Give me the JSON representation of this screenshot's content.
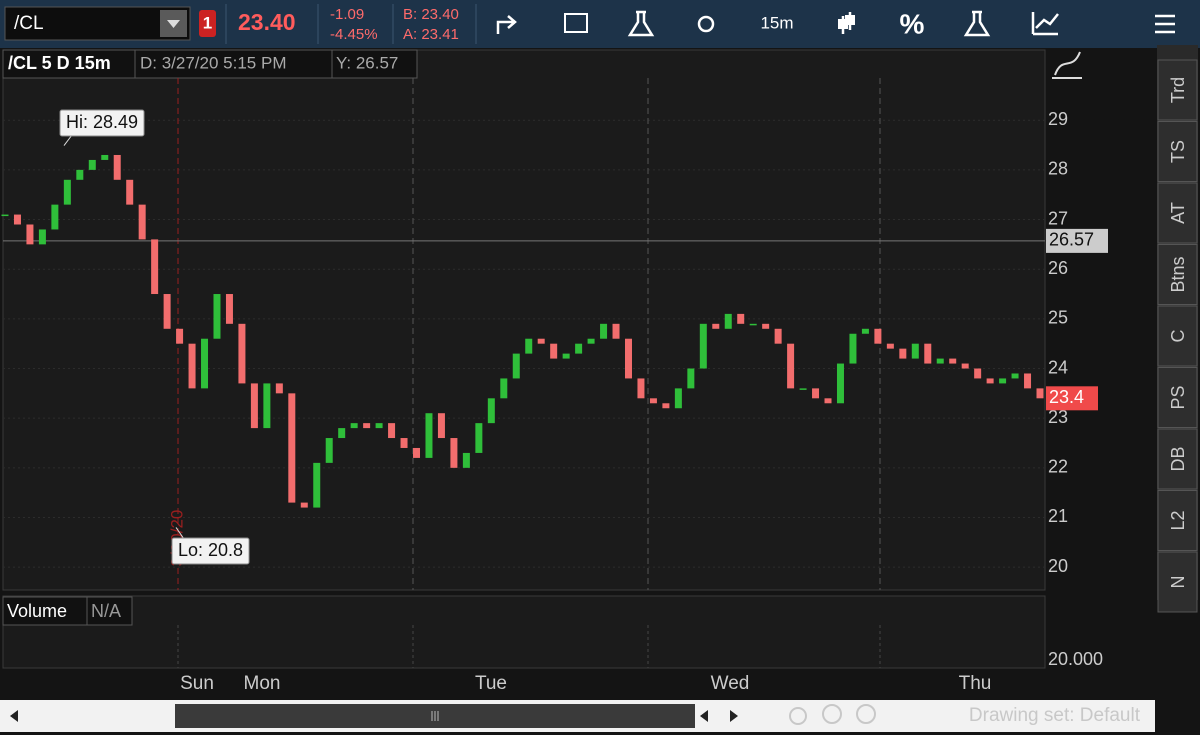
{
  "toolbar": {
    "symbol": "/CL",
    "alert_count": "1",
    "last": "23.40",
    "change": "-1.09",
    "change_pct": "-4.45%",
    "bid": "B: 23.40",
    "ask": "A: 23.41",
    "timeframe": "15m",
    "percent_button": "%"
  },
  "chart_header": {
    "title": "/CL 5 D 15m",
    "date": "D: 3/27/20 5:15 PM",
    "cursor_value": "Y: 26.57"
  },
  "chart_data": {
    "type": "candlestick",
    "color_up": "#2fbf3a",
    "color_down": "#f26d6d",
    "closes": [
      27.1,
      26.9,
      26.5,
      26.8,
      27.3,
      27.8,
      28.0,
      28.2,
      28.3,
      27.8,
      27.3,
      26.6,
      25.5,
      24.8,
      24.5,
      23.6,
      24.6,
      25.5,
      24.9,
      23.7,
      22.8,
      23.7,
      23.5,
      21.3,
      21.2,
      22.1,
      22.6,
      22.8,
      22.9,
      22.8,
      22.9,
      22.6,
      22.4,
      22.2,
      23.1,
      22.6,
      22.0,
      22.3,
      22.9,
      23.4,
      23.8,
      24.3,
      24.6,
      24.5,
      24.2,
      24.3,
      24.5,
      24.6,
      24.9,
      24.6,
      23.8,
      23.4,
      23.3,
      23.2,
      23.6,
      24.0,
      24.9,
      24.8,
      25.1,
      24.9,
      24.9,
      24.8,
      24.5,
      23.6,
      23.6,
      23.4,
      23.3,
      24.1,
      24.7,
      24.8,
      24.5,
      24.4,
      24.2,
      24.5,
      24.1,
      24.2,
      24.1,
      24.0,
      23.8,
      23.7,
      23.8,
      23.9,
      23.6,
      23.4
    ],
    "ylim": [
      19.54,
      29.85
    ],
    "yticks": [
      20,
      21,
      22,
      23,
      24,
      25,
      26,
      27,
      28,
      29
    ],
    "crosshair": 26.57,
    "last_price": 23.4,
    "high": {
      "label": "Hi: 28.49",
      "value": 28.49
    },
    "low": {
      "label": "Lo: 20.8",
      "value": 20.8
    },
    "session_marker": "3/20/20",
    "days": [
      "Sun",
      "Mon",
      "Tue",
      "Wed",
      "Thu"
    ]
  },
  "volume": {
    "title": "Volume",
    "value": "N/A",
    "tick": "20.000"
  },
  "side_tabs": [
    "Trd",
    "TS",
    "AT",
    "Btns",
    "C",
    "PS",
    "DB",
    "L2",
    "N"
  ],
  "bottom_bar": {
    "drawing_set": "Drawing set: Default"
  }
}
